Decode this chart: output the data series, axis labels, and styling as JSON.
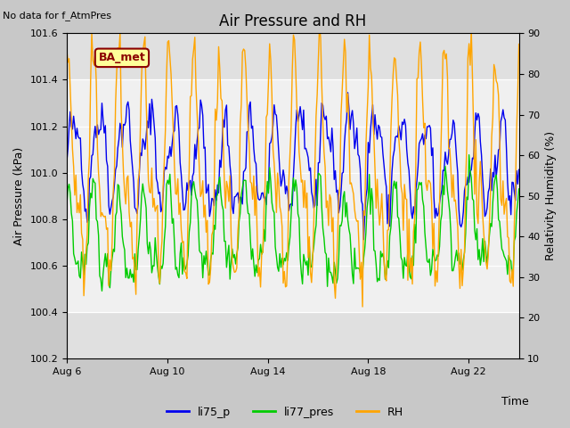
{
  "title": "Air Pressure and RH",
  "top_left_text": "No data for f_AtmPres",
  "xlabel": "Time",
  "ylabel_left": "Air Pressure (kPa)",
  "ylabel_right": "Relativity Humidity (%)",
  "xlim": [
    0,
    18
  ],
  "ylim_left": [
    100.2,
    101.6
  ],
  "ylim_right": [
    10,
    90
  ],
  "yticks_left": [
    100.2,
    100.4,
    100.6,
    100.8,
    101.0,
    101.2,
    101.4,
    101.6
  ],
  "yticks_right": [
    10,
    20,
    30,
    40,
    50,
    60,
    70,
    80,
    90
  ],
  "xtick_labels": [
    "Aug 6",
    "Aug 10",
    "Aug 14",
    "Aug 18",
    "Aug 22"
  ],
  "xtick_positions": [
    0,
    4,
    8,
    12,
    16
  ],
  "fig_bg_color": "#c8c8c8",
  "plot_bg_color": "#e0e0e0",
  "inner_bg_color": "#f0f0f0",
  "grid_color": "#ffffff",
  "line_color_li75p": "#0000ee",
  "line_color_li77pres": "#00cc00",
  "line_color_RH": "#ffa500",
  "badge_text": "BA_met",
  "badge_color": "#8B0000",
  "badge_bg": "#ffff99",
  "legend_labels": [
    "li75_p",
    "li77_pres",
    "RH"
  ],
  "legend_colors": [
    "#0000ee",
    "#00cc00",
    "#ffa500"
  ]
}
